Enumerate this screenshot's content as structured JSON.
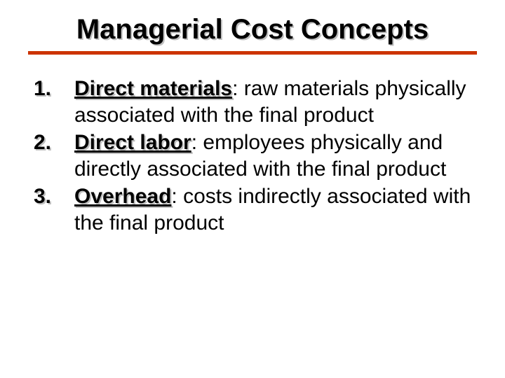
{
  "title": "Managerial Cost Concepts",
  "colors": {
    "title_underline": "#cc3300",
    "text": "#000000",
    "shadow": "#c0c0c0",
    "background": "#ffffff"
  },
  "typography": {
    "title_fontsize": 40,
    "body_fontsize": 30,
    "font_family": "Arial"
  },
  "items": [
    {
      "number": "1.",
      "term": "Direct materials",
      "desc": ": raw materials physically associated with the final product"
    },
    {
      "number": "2.",
      "term": "Direct labor",
      "desc": ": employees physically and directly associated with the final product"
    },
    {
      "number": "3.",
      "term": "Overhead",
      "desc": ": costs indirectly associated with the final product"
    }
  ]
}
